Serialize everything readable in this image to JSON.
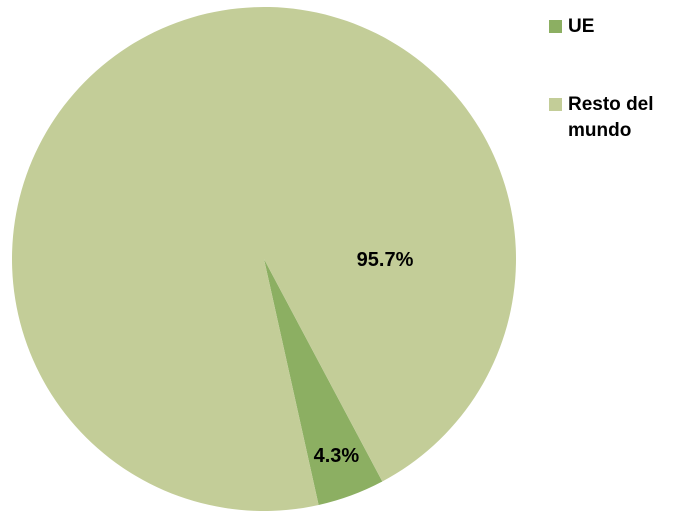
{
  "chart_data": {
    "type": "pie",
    "title": "",
    "categories": [
      "UE",
      "Resto del mundo"
    ],
    "values": [
      4.3,
      95.7
    ],
    "data_labels": [
      "4.3%",
      "95.7%"
    ],
    "colors": [
      "#8caf62",
      "#c3cd98"
    ],
    "start_angle_deg": -62,
    "legend_position": "top-right"
  }
}
